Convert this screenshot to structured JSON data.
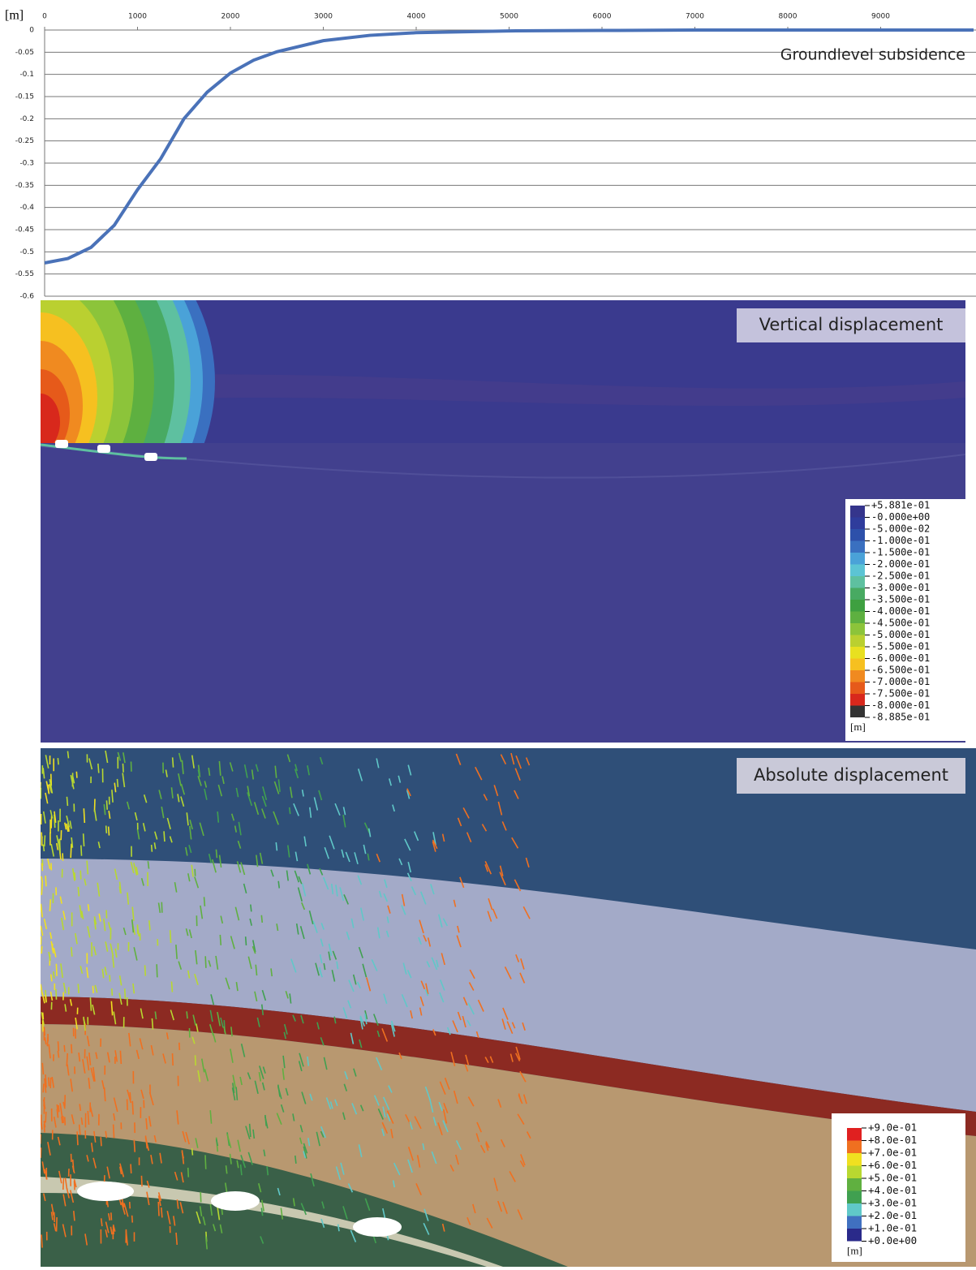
{
  "chart_data": {
    "type": "line",
    "title": "Groundlevel subsidence",
    "y_unit": "[m]",
    "x": [
      0,
      250,
      500,
      750,
      1000,
      1250,
      1500,
      1750,
      2000,
      2250,
      2500,
      3000,
      3500,
      4000,
      5000,
      6000,
      7000,
      8000,
      9000,
      10000
    ],
    "series": [
      {
        "name": "Groundlevel subsidence",
        "color": "#4a72b8",
        "values": [
          -0.525,
          -0.515,
          -0.49,
          -0.44,
          -0.36,
          -0.29,
          -0.2,
          -0.14,
          -0.097,
          -0.068,
          -0.049,
          -0.024,
          -0.012,
          -0.006,
          -0.002,
          -0.001,
          0,
          0,
          0,
          0
        ]
      }
    ],
    "xlim": [
      0,
      10000
    ],
    "xticks": [
      0,
      1000,
      2000,
      3000,
      4000,
      5000,
      6000,
      7000,
      8000,
      9000
    ],
    "ylim": [
      -0.6,
      0
    ],
    "yticks": [
      0,
      -0.05,
      -0.1,
      -0.15,
      -0.2,
      -0.25,
      -0.3,
      -0.35,
      -0.4,
      -0.45,
      -0.5,
      -0.55,
      -0.6
    ],
    "grid": true
  },
  "vertical_panel": {
    "title": "Vertical displacement",
    "legend_unit": "[m]",
    "legend_labels": [
      "+5.881e-01",
      "-0.000e+00",
      "-5.000e-02",
      "-1.000e-01",
      "-1.500e-01",
      "-2.000e-01",
      "-2.500e-01",
      "-3.000e-01",
      "-3.500e-01",
      "-4.000e-01",
      "-4.500e-01",
      "-5.000e-01",
      "-5.500e-01",
      "-6.000e-01",
      "-6.500e-01",
      "-7.000e-01",
      "-7.500e-01",
      "-8.000e-01",
      "-8.885e-01"
    ],
    "legend_colors": [
      "#35358c",
      "#2f3c9c",
      "#2d50aa",
      "#3a70c0",
      "#4aa2d8",
      "#5cc4d4",
      "#5ec0a0",
      "#48aa62",
      "#3ea040",
      "#5eb040",
      "#8cc43a",
      "#bad030",
      "#e8e020",
      "#f6c020",
      "#f08a20",
      "#e65a1a",
      "#d8281c",
      "#333333"
    ]
  },
  "absolute_panel": {
    "title": "Absolute displacement",
    "legend_unit": "[m]",
    "legend_labels": [
      "+9.0e-01",
      "+8.0e-01",
      "+7.0e-01",
      "+6.0e-01",
      "+5.0e-01",
      "+4.0e-01",
      "+3.0e-01",
      "+2.0e-01",
      "+1.0e-01",
      "+0.0e+00"
    ],
    "legend_colors": [
      "#e02020",
      "#f07020",
      "#f0e020",
      "#b8d830",
      "#60b040",
      "#40a050",
      "#60c8c8",
      "#4070c0",
      "#2a2a8a"
    ]
  }
}
